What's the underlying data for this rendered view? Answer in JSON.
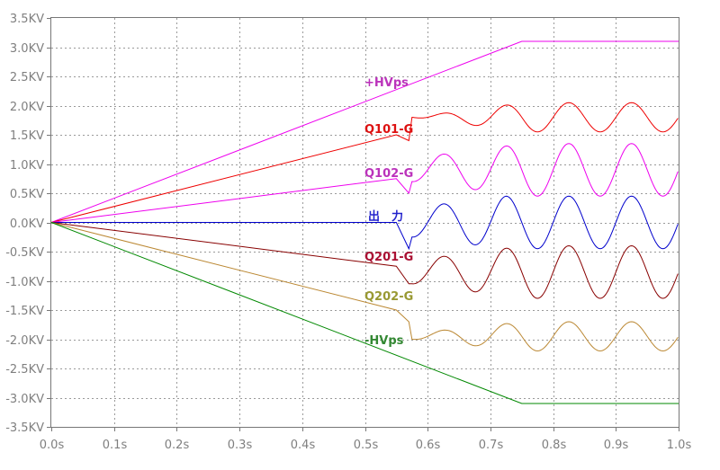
{
  "chart_data": {
    "type": "line",
    "title": "",
    "xlabel": "",
    "ylabel": "",
    "x_range": [
      0.0,
      1.0
    ],
    "y_range": [
      -3.5,
      3.5
    ],
    "x_unit": "s",
    "y_unit": "KV",
    "grid": true,
    "x_ticks": [
      "0.0s",
      "0.1s",
      "0.2s",
      "0.3s",
      "0.4s",
      "0.5s",
      "0.6s",
      "0.7s",
      "0.8s",
      "0.9s",
      "1.0s"
    ],
    "y_ticks": [
      "3.5KV",
      "3.0KV",
      "2.5KV",
      "2.0KV",
      "1.5KV",
      "1.0KV",
      "0.5KV",
      "0.0KV",
      "-0.5KV",
      "-1.0KV",
      "-1.5KV",
      "-2.0KV",
      "-2.5KV",
      "-3.0KV",
      "-3.5KV"
    ],
    "series": [
      {
        "name": "+HVps",
        "color": "#ee00ee",
        "label_color": "#bb33bb",
        "points": [
          [
            0.0,
            0.0
          ],
          [
            0.75,
            3.1
          ],
          [
            1.0,
            3.1
          ]
        ]
      },
      {
        "name": "Q101-G",
        "color": "#ee0000",
        "label_color": "#dd1111",
        "ramp_end": [
          0.55,
          1.5
        ],
        "dip": [
          0.57,
          1.4
        ],
        "osc": {
          "start": 0.575,
          "center": 1.8,
          "amp_start": 0.0,
          "amp_end": 0.25,
          "amp_time": 0.18,
          "period": 0.1,
          "phase_peak": 0.625
        }
      },
      {
        "name": "Q102-G",
        "color": "#ee00ee",
        "label_color": "#bb33bb",
        "ramp_end": [
          0.55,
          0.75
        ],
        "dip": [
          0.57,
          0.5
        ],
        "osc": {
          "start": 0.575,
          "center": 0.9,
          "amp_start": 0.2,
          "amp_end": 0.45,
          "amp_time": 0.18,
          "period": 0.1,
          "phase_peak": 0.625
        }
      },
      {
        "name": "出　力",
        "color": "#0000cc",
        "label_color": "#2222cc",
        "ramp_end": [
          0.55,
          0.0
        ],
        "dip": [
          0.57,
          -0.45
        ],
        "osc": {
          "start": 0.575,
          "center": 0.0,
          "amp_start": 0.25,
          "amp_end": 0.45,
          "amp_time": 0.15,
          "period": 0.1,
          "phase_peak": 0.625
        }
      },
      {
        "name": "Q201-G",
        "color": "#880000",
        "label_color": "#aa1133",
        "ramp_end": [
          0.55,
          -0.75
        ],
        "dip": [
          0.57,
          -1.05
        ],
        "osc": {
          "start": 0.575,
          "center": -0.85,
          "amp_start": 0.2,
          "amp_end": 0.45,
          "amp_time": 0.18,
          "period": 0.1,
          "phase_peak": 0.625
        }
      },
      {
        "name": "Q202-G",
        "color": "#bb8833",
        "label_color": "#999933",
        "ramp_end": [
          0.55,
          -1.5
        ],
        "dip": [
          0.57,
          -1.7
        ],
        "osc": {
          "start": 0.575,
          "center": -1.95,
          "amp_start": 0.05,
          "amp_end": 0.25,
          "amp_time": 0.18,
          "period": 0.1,
          "phase_peak": 0.525
        }
      },
      {
        "name": "-HVps",
        "color": "#008800",
        "label_color": "#338833",
        "points": [
          [
            0.0,
            0.0
          ],
          [
            0.75,
            -3.1
          ],
          [
            1.0,
            -3.1
          ]
        ]
      }
    ]
  }
}
